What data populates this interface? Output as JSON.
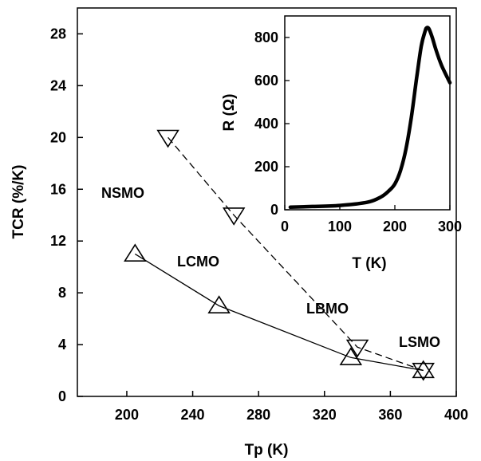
{
  "chart_data": [
    {
      "type": "line",
      "xlabel": "Tp (K)",
      "ylabel": "TCR (%/K)",
      "xlim": [
        170,
        400
      ],
      "ylim": [
        0,
        30
      ],
      "xticks": [
        "200",
        "240",
        "280",
        "320",
        "360",
        "400"
      ],
      "yticks": [
        "0",
        "4",
        "8",
        "12",
        "16",
        "20",
        "24",
        "28"
      ],
      "series": [
        {
          "marker": "triangle-up",
          "line_style": "solid",
          "x": [
            205,
            256,
            336,
            380
          ],
          "y": [
            11,
            7,
            3,
            2
          ]
        },
        {
          "marker": "triangle-down",
          "line_style": "dashed",
          "x": [
            225,
            265,
            340,
            380
          ],
          "y": [
            20,
            14,
            3.8,
            2
          ]
        }
      ],
      "annotations": [
        "NSMO",
        "LCMO",
        "LBMO",
        "LSMO"
      ],
      "grid": false
    },
    {
      "type": "line",
      "xlabel": "T (K)",
      "ylabel": "R (Ω)",
      "xlim": [
        0,
        300
      ],
      "ylim": [
        0,
        900
      ],
      "xticks": [
        "0",
        "100",
        "200",
        "300"
      ],
      "yticks": [
        "0",
        "200",
        "400",
        "600",
        "800"
      ],
      "series": [
        {
          "line_style": "solid-thick",
          "x": [
            10,
            50,
            100,
            150,
            175,
            190,
            200,
            210,
            220,
            230,
            240,
            248,
            255,
            258,
            262,
            268,
            275,
            285,
            300
          ],
          "y": [
            12,
            15,
            20,
            35,
            60,
            90,
            120,
            180,
            280,
            430,
            620,
            760,
            830,
            845,
            840,
            800,
            740,
            670,
            590
          ]
        }
      ],
      "grid": false
    }
  ]
}
